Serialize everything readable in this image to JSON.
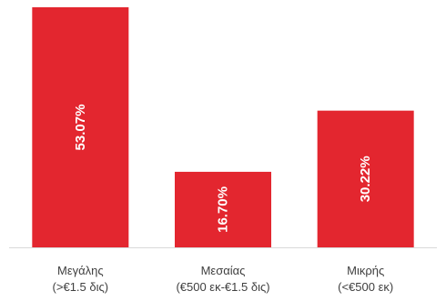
{
  "chart_data": {
    "type": "bar",
    "categories": [
      [
        "Μεγάλης",
        "(>€1.5 δις)"
      ],
      [
        "Μεσαίας",
        "(€500 εκ-€1.5 δις)"
      ],
      [
        "Μικρής",
        "(<€500 εκ)"
      ]
    ],
    "values": [
      53.07,
      16.7,
      30.22
    ],
    "data_labels": [
      "53.07%",
      "16.70%",
      "30.22%"
    ],
    "title": "",
    "xlabel": "",
    "ylabel": "",
    "ylim": [
      0,
      53.07
    ],
    "grid": false,
    "legend": "none",
    "bar_color": "#e3262f",
    "axis_color": "#d9d9d9"
  }
}
